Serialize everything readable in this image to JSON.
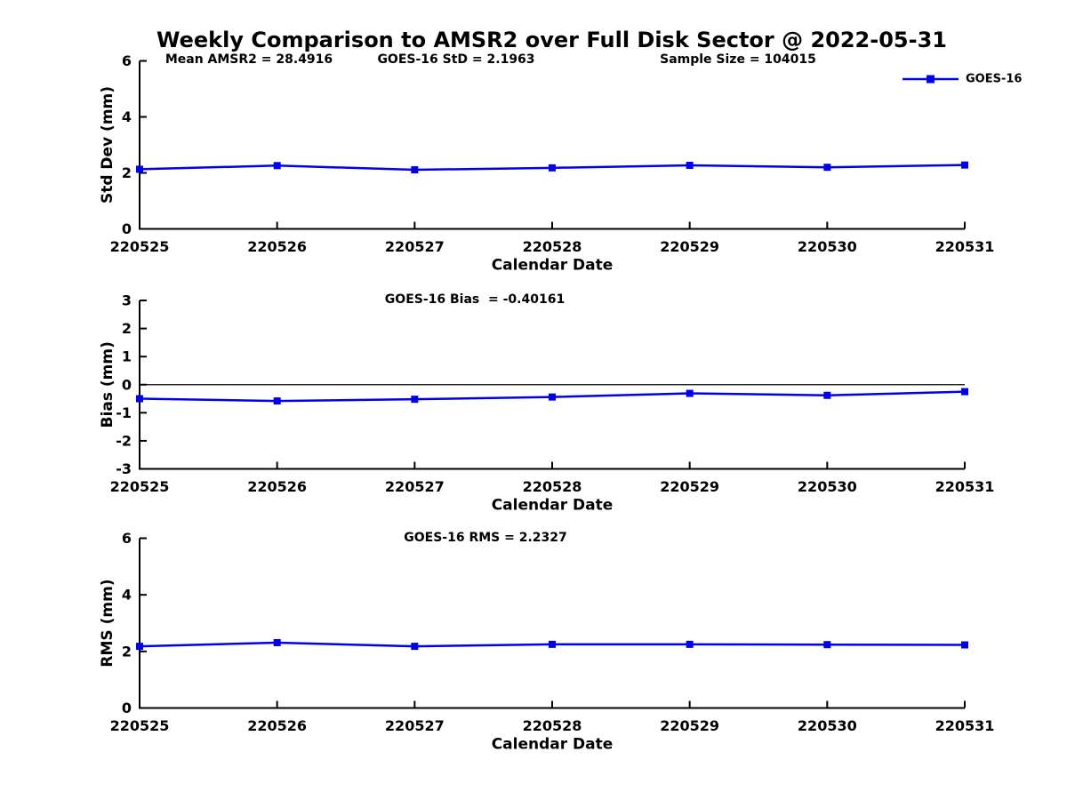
{
  "title": "Weekly Comparison to AMSR2 over Full Disk Sector @ 2022-05-31",
  "colors": {
    "line": "#0000EE",
    "axis": "#000000",
    "background": "#FFFFFF"
  },
  "legend": {
    "label": "GOES-16"
  },
  "x_axis_label": "Calendar Date",
  "chart_data": [
    {
      "type": "line",
      "name": "std-dev-panel",
      "categories": [
        "220525",
        "220526",
        "220527",
        "220528",
        "220529",
        "220530",
        "220531"
      ],
      "series": [
        {
          "name": "GOES-16",
          "values": [
            2.13,
            2.26,
            2.11,
            2.18,
            2.27,
            2.2,
            2.28
          ]
        }
      ],
      "annotations": [
        "Mean AMSR2 = 28.4916",
        "GOES-16 StD = 2.1963",
        "Sample Size = 104015"
      ],
      "xlabel": "Calendar Date",
      "ylabel": "Std Dev (mm)",
      "ylim": [
        0,
        6
      ],
      "yticks": [
        0,
        2,
        4,
        6
      ],
      "grid": false,
      "zero_line": false,
      "legend_position": "top-right"
    },
    {
      "type": "line",
      "name": "bias-panel",
      "categories": [
        "220525",
        "220526",
        "220527",
        "220528",
        "220529",
        "220530",
        "220531"
      ],
      "series": [
        {
          "name": "GOES-16",
          "values": [
            -0.5,
            -0.58,
            -0.52,
            -0.44,
            -0.31,
            -0.38,
            -0.25
          ]
        }
      ],
      "annotations": [
        "GOES-16 Bias  = -0.40161"
      ],
      "xlabel": "Calendar Date",
      "ylabel": "Bias (mm)",
      "ylim": [
        -3,
        3
      ],
      "yticks": [
        -3,
        -2,
        -1,
        0,
        1,
        2,
        3
      ],
      "grid": false,
      "zero_line": true,
      "legend_position": "none"
    },
    {
      "type": "line",
      "name": "rms-panel",
      "categories": [
        "220525",
        "220526",
        "220527",
        "220528",
        "220529",
        "220530",
        "220531"
      ],
      "series": [
        {
          "name": "GOES-16",
          "values": [
            2.18,
            2.31,
            2.18,
            2.25,
            2.25,
            2.24,
            2.23
          ]
        }
      ],
      "annotations": [
        "GOES-16 RMS = 2.2327"
      ],
      "xlabel": "Calendar Date",
      "ylabel": "RMS (mm)",
      "ylim": [
        0,
        6
      ],
      "yticks": [
        0,
        2,
        4,
        6
      ],
      "grid": false,
      "zero_line": false,
      "legend_position": "none"
    }
  ]
}
